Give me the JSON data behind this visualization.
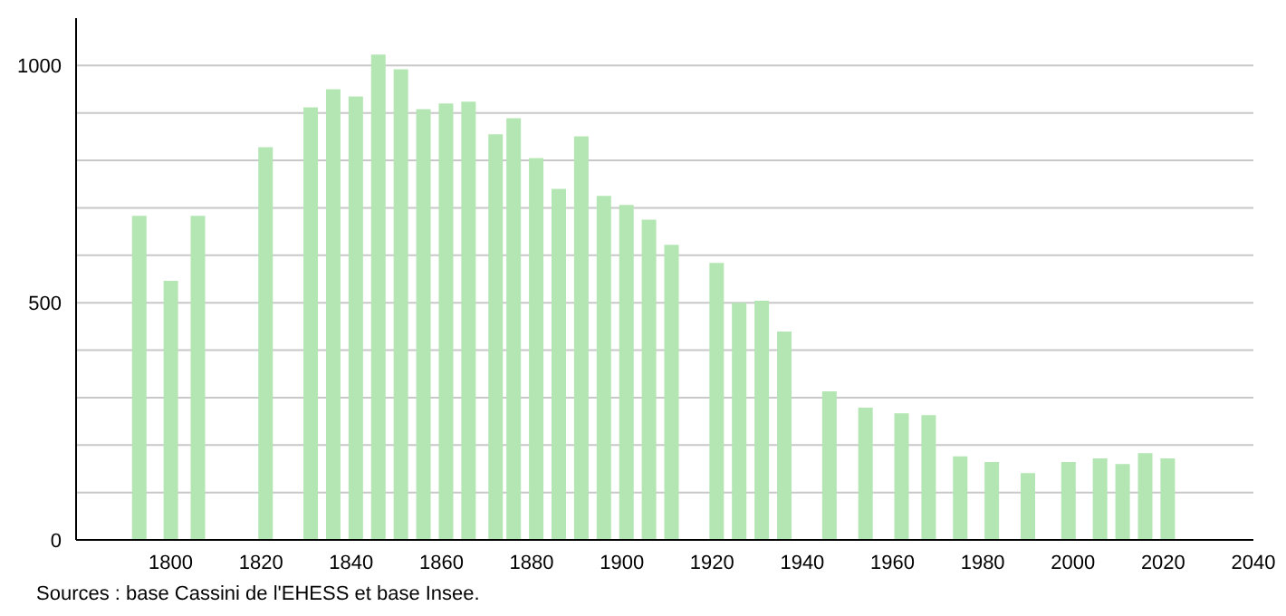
{
  "chart_data": {
    "type": "bar",
    "color": "#b3e6b3",
    "x": [
      1793,
      1800,
      1806,
      1821,
      1831,
      1836,
      1841,
      1846,
      1851,
      1856,
      1861,
      1866,
      1872,
      1876,
      1881,
      1886,
      1891,
      1896,
      1901,
      1906,
      1911,
      1921,
      1926,
      1931,
      1936,
      1946,
      1954,
      1962,
      1968,
      1975,
      1982,
      1990,
      1999,
      2006,
      2011,
      2016,
      2021
    ],
    "values": [
      683,
      546,
      683,
      828,
      912,
      950,
      935,
      1023,
      992,
      908,
      920,
      924,
      855,
      889,
      805,
      740,
      851,
      725,
      706,
      675,
      622,
      584,
      500,
      504,
      439,
      313,
      279,
      267,
      263,
      176,
      164,
      141,
      164,
      172,
      160,
      183,
      172
    ],
    "xlim": [
      1779,
      2040
    ],
    "xticks": [
      1800,
      1820,
      1840,
      1860,
      1880,
      1900,
      1920,
      1940,
      1960,
      1980,
      2000,
      2020,
      2040
    ],
    "ylim": [
      0,
      1100
    ],
    "yticks": [
      0,
      {
        "value": 100,
        "label": null
      },
      {
        "value": 200,
        "label": null
      },
      {
        "value": 300,
        "label": null
      },
      {
        "value": 400,
        "label": null
      },
      500,
      {
        "value": 600,
        "label": null
      },
      {
        "value": 700,
        "label": null
      },
      {
        "value": 800,
        "label": null
      },
      {
        "value": 900,
        "label": null
      },
      1000
    ],
    "grid": "y",
    "annotations": [
      "Sources : base Cassini de l'EHESS et base Insee."
    ]
  }
}
